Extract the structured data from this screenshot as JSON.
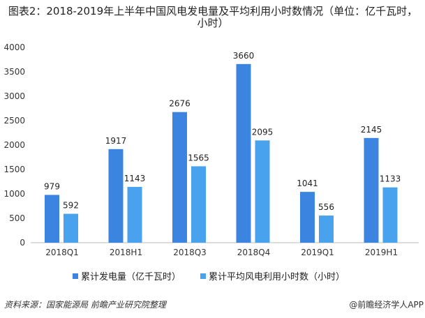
{
  "chart_data": {
    "type": "bar",
    "title": "图表2：2018-2019年上半年中国风电发电量及平均利用小时数情况（单位：亿千瓦时，小时）",
    "categories": [
      "2018Q1",
      "2018H1",
      "2018Q3",
      "2018Q4",
      "2019Q1",
      "2019H1"
    ],
    "series": [
      {
        "name": "累计发电量（亿千瓦时）",
        "values": [
          979,
          1917,
          2676,
          3660,
          1041,
          2145
        ],
        "color": "#3b84df"
      },
      {
        "name": "累计平均风电利用小时数（小时）",
        "values": [
          592,
          1143,
          1565,
          2095,
          556,
          1133
        ],
        "color": "#48a2ee"
      }
    ],
    "ylim": [
      0,
      4000
    ],
    "yticks": [
      0,
      500,
      1000,
      1500,
      2000,
      2500,
      3000,
      3500,
      4000
    ],
    "grid": false,
    "legend": "bottom"
  },
  "source": "资料来源：国家能源局 前瞻产业研究院整理",
  "brand": "@前瞻经济学人APP"
}
